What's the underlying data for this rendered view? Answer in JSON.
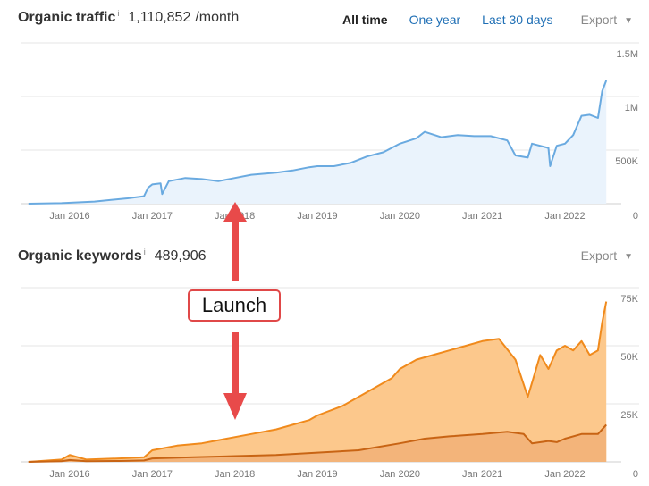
{
  "traffic": {
    "title": "Organic traffic",
    "info": "i",
    "value": "1,110,852",
    "unit": "/month",
    "export_label": "Export",
    "export_caret": "▼"
  },
  "tabs": [
    {
      "label": "All time",
      "active": true
    },
    {
      "label": "One year",
      "active": false
    },
    {
      "label": "Last 30 days",
      "active": false
    }
  ],
  "keywords": {
    "title": "Organic keywords",
    "info": "i",
    "value": "489,906",
    "export_label": "Export",
    "export_caret": "▼"
  },
  "annotation": {
    "label": "Launch",
    "color": "#e84a4a",
    "points_to": "Jan 2018"
  },
  "colors": {
    "traffic_line": "#6aaae0",
    "traffic_fill": "#eaf3fc",
    "keywords_top_line": "#f08a1c",
    "keywords_top_fill": "#fcc88c",
    "keywords_bottom_line": "#c86414",
    "keywords_bottom_fill": "#f3b47a",
    "grid": "#e6e6e6",
    "tick": "#777777"
  },
  "chart_data": [
    {
      "type": "area",
      "title": "Organic traffic",
      "x_ticks": [
        "Jan 2016",
        "Jan 2017",
        "Jan 2018",
        "Jan 2019",
        "Jan 2020",
        "Jan 2021",
        "Jan 2022"
      ],
      "y_ticks": [
        "1.5M",
        "1M",
        "500K",
        "0"
      ],
      "ylim": [
        0,
        1500000
      ],
      "grid": true,
      "series": [
        {
          "x": [
            2015.5,
            2015.9,
            2016.3,
            2016.7,
            2016.9,
            2016.95,
            2017.0,
            2017.1,
            2017.12,
            2017.2,
            2017.4,
            2017.6,
            2017.8,
            2018.0,
            2018.2,
            2018.5,
            2018.7,
            2018.9,
            2019.0,
            2019.2,
            2019.4,
            2019.6,
            2019.8,
            2020.0,
            2020.2,
            2020.3,
            2020.5,
            2020.7,
            2020.9,
            2021.1,
            2021.3,
            2021.4,
            2021.55,
            2021.6,
            2021.8,
            2021.82,
            2021.9,
            2022.0,
            2022.1,
            2022.2,
            2022.3,
            2022.4,
            2022.45,
            2022.5
          ],
          "values": [
            0,
            5000,
            20000,
            50000,
            70000,
            150000,
            180000,
            190000,
            90000,
            210000,
            240000,
            230000,
            210000,
            240000,
            270000,
            290000,
            310000,
            340000,
            350000,
            350000,
            380000,
            440000,
            480000,
            560000,
            610000,
            670000,
            620000,
            640000,
            630000,
            630000,
            590000,
            450000,
            430000,
            560000,
            520000,
            350000,
            540000,
            560000,
            640000,
            820000,
            830000,
            800000,
            1050000,
            1150000
          ]
        }
      ]
    },
    {
      "type": "area",
      "title": "Organic keywords",
      "x_ticks": [
        "Jan 2016",
        "Jan 2017",
        "Jan 2018",
        "Jan 2019",
        "Jan 2020",
        "Jan 2021",
        "Jan 2022"
      ],
      "y_ticks": [
        "75K",
        "50K",
        "25K",
        "0"
      ],
      "ylim": [
        0,
        75000
      ],
      "grid": true,
      "series": [
        {
          "x": [
            2015.5,
            2015.9,
            2016.0,
            2016.2,
            2016.6,
            2016.9,
            2017.0,
            2017.3,
            2017.6,
            2017.9,
            2018.2,
            2018.5,
            2018.9,
            2019.0,
            2019.3,
            2019.6,
            2019.9,
            2020.0,
            2020.2,
            2020.4,
            2020.6,
            2020.8,
            2021.0,
            2021.2,
            2021.4,
            2021.55,
            2021.6,
            2021.7,
            2021.8,
            2021.9,
            2022.0,
            2022.1,
            2022.2,
            2022.3,
            2022.4,
            2022.45,
            2022.5
          ],
          "values": [
            0,
            1000,
            3000,
            1000,
            1500,
            2000,
            5000,
            7000,
            8000,
            10000,
            12000,
            14000,
            18000,
            20000,
            24000,
            30000,
            36000,
            40000,
            44000,
            46000,
            48000,
            50000,
            52000,
            53000,
            44000,
            28000,
            34000,
            46000,
            40000,
            48000,
            50000,
            48000,
            52000,
            46000,
            48000,
            60000,
            69000
          ]
        },
        {
          "x": [
            2015.5,
            2015.9,
            2016.0,
            2016.2,
            2016.6,
            2016.9,
            2017.0,
            2017.5,
            2018.0,
            2018.5,
            2019.0,
            2019.5,
            2020.0,
            2020.3,
            2020.6,
            2021.0,
            2021.3,
            2021.5,
            2021.6,
            2021.8,
            2021.9,
            2022.0,
            2022.2,
            2022.4,
            2022.5
          ],
          "values": [
            0,
            300,
            800,
            300,
            400,
            600,
            1500,
            2000,
            2500,
            3000,
            4000,
            5000,
            8000,
            10000,
            11000,
            12000,
            13000,
            12000,
            8000,
            9000,
            8500,
            10000,
            12000,
            12000,
            16000
          ]
        }
      ]
    }
  ]
}
